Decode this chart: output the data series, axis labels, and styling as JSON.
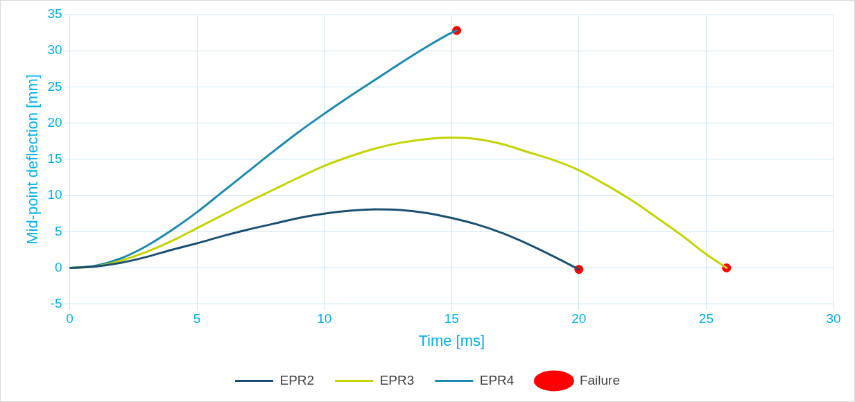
{
  "chart_data": {
    "type": "line",
    "xlabel": "Time [ms]",
    "ylabel": "Mid-point deflection [mm]",
    "xlim": [
      0,
      30
    ],
    "xticks": [
      0,
      5,
      10,
      15,
      20,
      25,
      30
    ],
    "ylim": [
      -5,
      35
    ],
    "yticks": [
      -5,
      0,
      5,
      10,
      15,
      20,
      25,
      30,
      35
    ],
    "grid": true,
    "legend": "bottom",
    "line_style": "solid",
    "series": [
      {
        "name": "EPR2",
        "color": "#1b4f72",
        "marker": "none",
        "x": [
          0,
          1,
          2,
          3,
          4,
          5,
          6,
          7,
          8,
          9,
          10,
          11,
          12,
          13,
          14,
          15,
          16,
          17,
          18,
          19,
          20
        ],
        "values": [
          0,
          0.2,
          0.7,
          1.5,
          2.5,
          3.4,
          4.4,
          5.3,
          6.1,
          6.9,
          7.5,
          7.9,
          8.1,
          8,
          7.6,
          6.9,
          6,
          4.8,
          3.3,
          1.6,
          -0.2
        ]
      },
      {
        "name": "EPR3",
        "color": "#c3d400",
        "marker": "none",
        "x": [
          0,
          1,
          2,
          3,
          4,
          5,
          6,
          7,
          8,
          9,
          10,
          11,
          12,
          13,
          14,
          15,
          16,
          17,
          18,
          19,
          20,
          21,
          22,
          23,
          24,
          25,
          25.8
        ],
        "values": [
          0,
          0.2,
          1,
          2.2,
          3.7,
          5.5,
          7.3,
          9.1,
          10.8,
          12.5,
          14.1,
          15.4,
          16.5,
          17.3,
          17.8,
          18,
          17.8,
          17.1,
          16,
          14.9,
          13.5,
          11.6,
          9.5,
          7.1,
          4.6,
          1.9,
          0
        ]
      },
      {
        "name": "EPR4",
        "color": "#1a8ab0",
        "marker": "none",
        "x": [
          0,
          1,
          2,
          3,
          4,
          5,
          6,
          7,
          8,
          9,
          10,
          11,
          12,
          13,
          14,
          15,
          15.2
        ],
        "values": [
          0,
          0.3,
          1.3,
          3,
          5.2,
          7.7,
          10.5,
          13.3,
          16.1,
          18.8,
          21.3,
          23.7,
          26,
          28.3,
          30.5,
          32.5,
          32.8
        ]
      },
      {
        "name": "Failure",
        "type": "scatter",
        "color": "#ff0000",
        "marker": "circle",
        "x": [
          15.2,
          20,
          25.8
        ],
        "values": [
          32.8,
          -0.2,
          0
        ]
      }
    ]
  }
}
